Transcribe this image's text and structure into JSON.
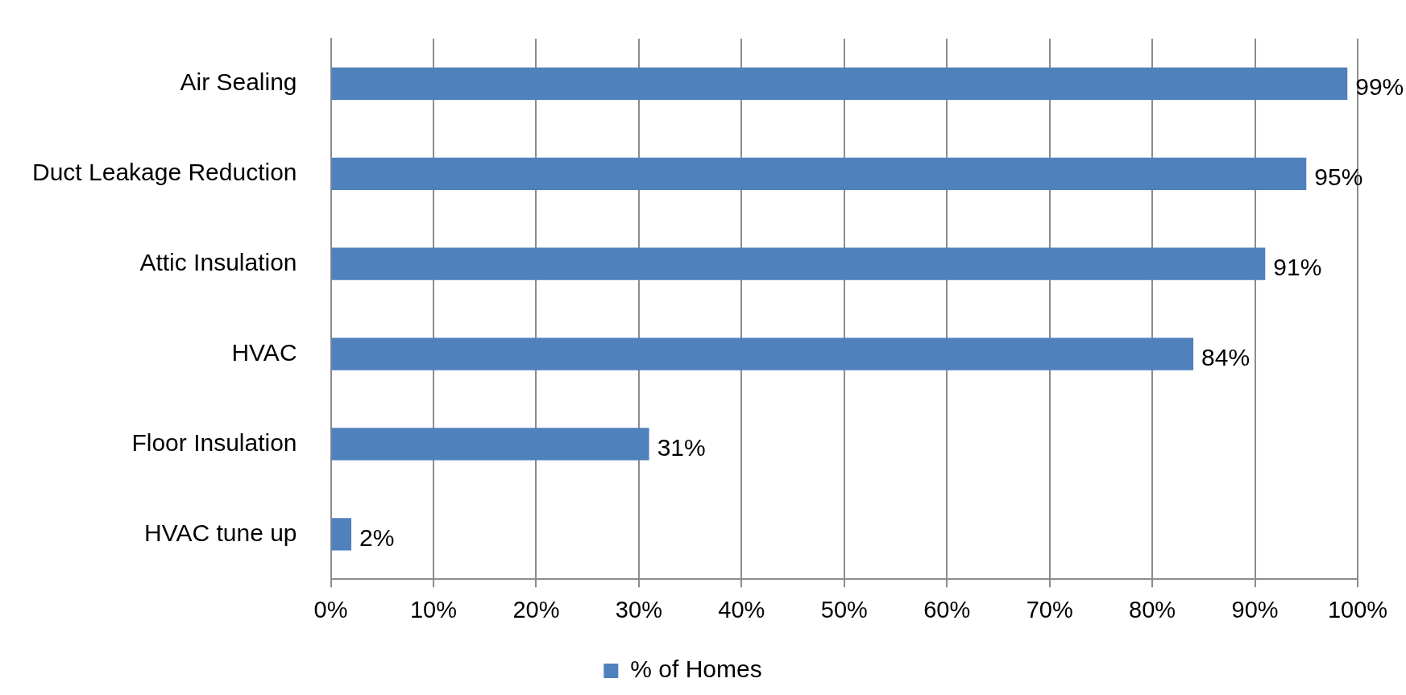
{
  "chart_data": {
    "type": "bar",
    "orientation": "horizontal",
    "categories": [
      "Air Sealing",
      "Duct Leakage Reduction",
      "Attic Insulation",
      "HVAC",
      "Floor Insulation",
      "HVAC tune up"
    ],
    "series": [
      {
        "name": "% of Homes",
        "color": "#4f81bd",
        "values": [
          99,
          95,
          91,
          84,
          31,
          2
        ],
        "value_labels": [
          "99%",
          "95%",
          "91%",
          "84%",
          "31%",
          "2%"
        ]
      }
    ],
    "xlim": [
      0,
      100
    ],
    "xticks": [
      {
        "value": 0,
        "label": "0%"
      },
      {
        "value": 10,
        "label": "10%"
      },
      {
        "value": 20,
        "label": "20%"
      },
      {
        "value": 30,
        "label": "30%"
      },
      {
        "value": 40,
        "label": "40%"
      },
      {
        "value": 50,
        "label": "50%"
      },
      {
        "value": 60,
        "label": "60%"
      },
      {
        "value": 70,
        "label": "70%"
      },
      {
        "value": 80,
        "label": "80%"
      },
      {
        "value": 90,
        "label": "90%"
      },
      {
        "value": 100,
        "label": "100%"
      }
    ],
    "grid": "x",
    "legend": "bottom"
  }
}
